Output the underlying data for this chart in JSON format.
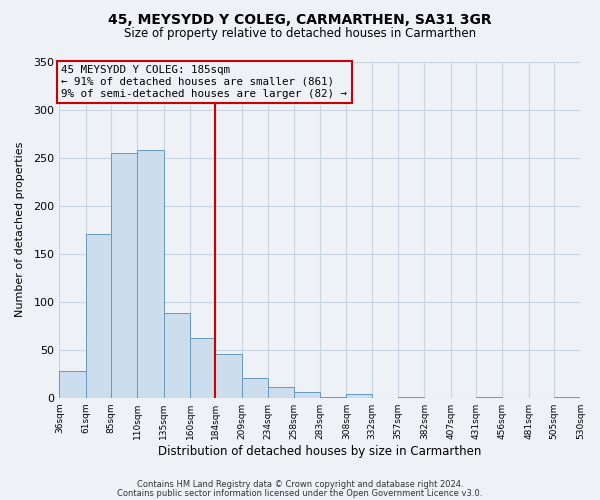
{
  "title": "45, MEYSYDD Y COLEG, CARMARTHEN, SA31 3GR",
  "subtitle": "Size of property relative to detached houses in Carmarthen",
  "xlabel": "Distribution of detached houses by size in Carmarthen",
  "ylabel": "Number of detached properties",
  "bar_values": [
    28,
    170,
    255,
    258,
    88,
    62,
    45,
    20,
    11,
    6,
    1,
    4,
    0,
    1,
    0,
    0,
    1,
    0,
    0,
    1
  ],
  "bin_edges": [
    36,
    61,
    85,
    110,
    135,
    160,
    184,
    209,
    234,
    258,
    283,
    308,
    332,
    357,
    382,
    407,
    431,
    456,
    481,
    505,
    530
  ],
  "tick_labels": [
    "36sqm",
    "61sqm",
    "85sqm",
    "110sqm",
    "135sqm",
    "160sqm",
    "184sqm",
    "209sqm",
    "234sqm",
    "258sqm",
    "283sqm",
    "308sqm",
    "332sqm",
    "357sqm",
    "382sqm",
    "407sqm",
    "431sqm",
    "456sqm",
    "481sqm",
    "505sqm",
    "530sqm"
  ],
  "bar_color": "#ccdded",
  "bar_edgecolor": "#6699bb",
  "vline_x": 184,
  "vline_color": "#cc0000",
  "annotation_text_line1": "45 MEYSYDD Y COLEG: 185sqm",
  "annotation_text_line2": "← 91% of detached houses are smaller (861)",
  "annotation_text_line3": "9% of semi-detached houses are larger (82) →",
  "annotation_box_edgecolor": "#cc0000",
  "ylim": [
    0,
    350
  ],
  "yticks": [
    0,
    50,
    100,
    150,
    200,
    250,
    300,
    350
  ],
  "footer1": "Contains HM Land Registry data © Crown copyright and database right 2024.",
  "footer2": "Contains public sector information licensed under the Open Government Licence v3.0.",
  "grid_color": "#c8d4e0",
  "bg_color": "#eef2f7"
}
